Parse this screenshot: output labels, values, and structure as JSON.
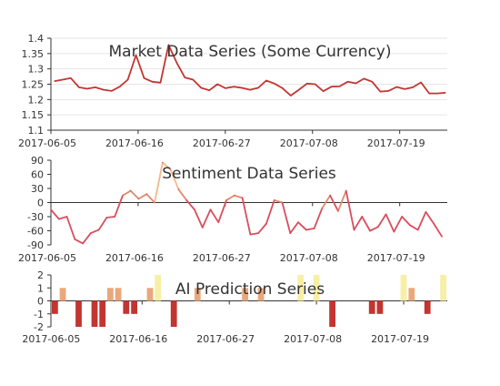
{
  "colors": {
    "line": "#c23531",
    "axis": "#333333",
    "grid": "#e6e6e6",
    "sentiment_line": "#d94e5d",
    "bar_low": "#c23531",
    "bar_mid": "#e8a87c",
    "bar_high": "#f7efa6"
  },
  "chart_data": [
    {
      "type": "line",
      "title": "Market Data Series (Some Currency)",
      "x_tick_labels": [
        "2017-06-05",
        "2017-06-16",
        "2017-06-27",
        "2017-07-08",
        "2017-07-19"
      ],
      "y_tick_labels": [
        "1.1",
        "1.15",
        "1.2",
        "1.25",
        "1.3",
        "1.35",
        "1.4"
      ],
      "ylim": [
        1.1,
        1.4
      ],
      "grid": "horizontal",
      "series": [
        {
          "values": [
            1.26,
            1.265,
            1.27,
            1.24,
            1.235,
            1.24,
            1.232,
            1.228,
            1.242,
            1.265,
            1.345,
            1.27,
            1.258,
            1.255,
            1.378,
            1.32,
            1.272,
            1.265,
            1.238,
            1.23,
            1.25,
            1.237,
            1.242,
            1.238,
            1.232,
            1.238,
            1.262,
            1.252,
            1.237,
            1.213,
            1.232,
            1.252,
            1.25,
            1.227,
            1.242,
            1.243,
            1.258,
            1.253,
            1.268,
            1.258,
            1.226,
            1.228,
            1.241,
            1.234,
            1.24,
            1.256,
            1.22,
            1.22,
            1.222
          ]
        }
      ]
    },
    {
      "type": "line",
      "title": "Sentiment Data Series",
      "x_tick_labels": [
        "2017-06-05",
        "2017-06-16",
        "2017-06-27",
        "2017-07-08",
        "2017-07-19"
      ],
      "y_tick_labels": [
        "-90",
        "-60",
        "-30",
        "0",
        "30",
        "60",
        "90"
      ],
      "ylim": [
        -90,
        90
      ],
      "series": [
        {
          "values": [
            -15,
            -35,
            -30,
            -78,
            -87,
            -65,
            -58,
            -32,
            -30,
            15,
            25,
            8,
            18,
            0,
            85,
            70,
            28,
            5,
            -15,
            -53,
            -15,
            -42,
            5,
            15,
            10,
            -68,
            -65,
            -45,
            5,
            0,
            -65,
            -42,
            -58,
            -55,
            -12,
            15,
            -18,
            25,
            -58,
            -30,
            -60,
            -52,
            -25,
            -62,
            -30,
            -48,
            -58,
            -20,
            -45,
            -72
          ]
        }
      ]
    },
    {
      "type": "bar",
      "title": "AI Prediction Series",
      "x_tick_labels": [
        "2017-06-05",
        "2017-06-16",
        "2017-06-27",
        "2017-07-08",
        "2017-07-19"
      ],
      "y_tick_labels": [
        "-2",
        "-1",
        "0",
        "1",
        "2"
      ],
      "ylim": [
        -2,
        2
      ],
      "series": [
        {
          "values": [
            -1,
            1,
            0,
            -2,
            0,
            -2,
            -2,
            1,
            1,
            -1,
            -1,
            0,
            1,
            2,
            0,
            -2,
            0,
            0,
            1,
            0,
            0,
            0,
            0,
            0,
            1,
            0,
            1,
            0,
            0,
            0,
            0,
            2,
            0,
            2,
            0,
            -2,
            0,
            0,
            0,
            0,
            -1,
            -1,
            0,
            0,
            2,
            1,
            0,
            -1,
            0,
            2
          ]
        }
      ]
    }
  ]
}
